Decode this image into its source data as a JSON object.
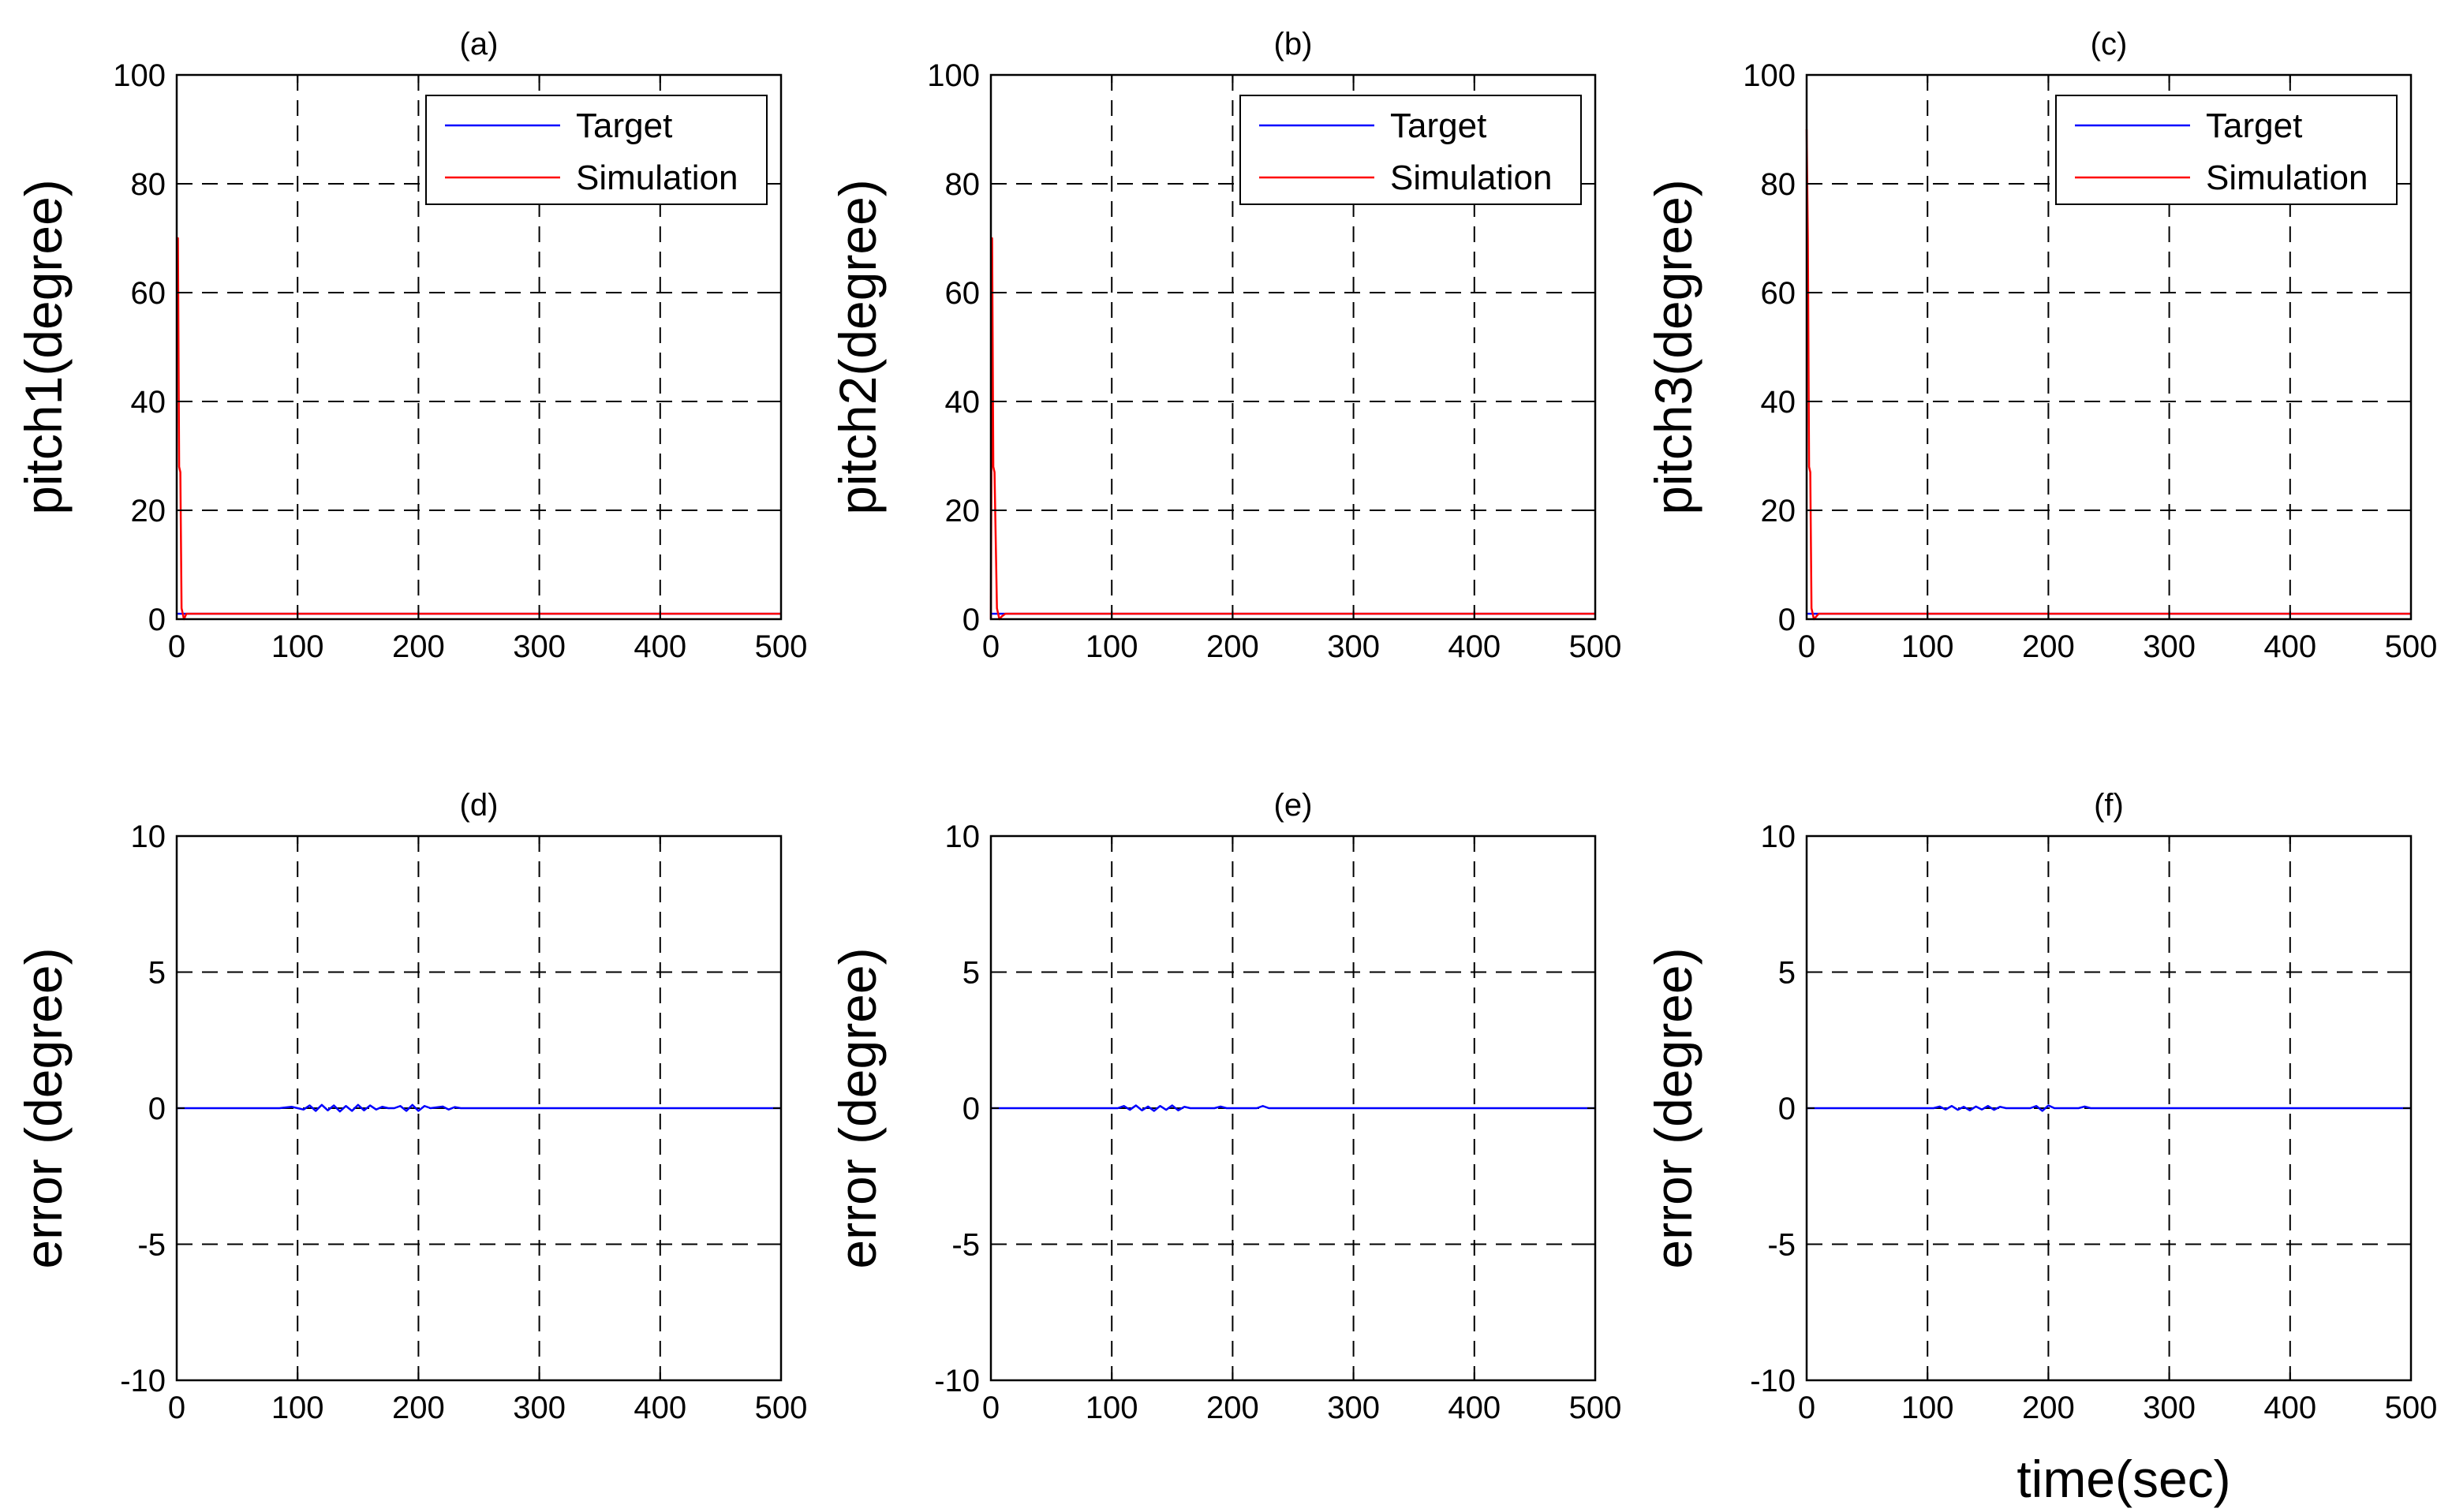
{
  "figure": {
    "shared_xlabel": "time(sec)",
    "colors": {
      "target": "#0000ff",
      "simulation": "#ff0000",
      "grid": "#000000",
      "axes": "#000000"
    }
  },
  "chart_data": [
    {
      "panel": "a",
      "type": "line",
      "title": "(a)",
      "xlabel": "",
      "ylabel": "pitch1(degree)",
      "xlim": [
        0,
        500
      ],
      "ylim": [
        0,
        100
      ],
      "xticks": [
        0,
        100,
        200,
        300,
        400,
        500
      ],
      "yticks": [
        0,
        20,
        40,
        60,
        80,
        100
      ],
      "grid": true,
      "legend_position": "top-right",
      "series": [
        {
          "name": "Target",
          "color": "#0000ff",
          "x": [
            0,
            500
          ],
          "y": [
            1,
            1
          ]
        },
        {
          "name": "Simulation",
          "color": "#ff0000",
          "x": [
            0,
            1,
            2,
            3,
            4,
            6,
            8,
            10,
            500
          ],
          "y": [
            70,
            70,
            28,
            27,
            2,
            0,
            1,
            1,
            1
          ]
        }
      ]
    },
    {
      "panel": "b",
      "type": "line",
      "title": "(b)",
      "xlabel": "",
      "ylabel": "pitch2(degree)",
      "xlim": [
        0,
        500
      ],
      "ylim": [
        0,
        100
      ],
      "xticks": [
        0,
        100,
        200,
        300,
        400,
        500
      ],
      "yticks": [
        0,
        20,
        40,
        60,
        80,
        100
      ],
      "grid": true,
      "legend_position": "top-right",
      "series": [
        {
          "name": "Target",
          "color": "#0000ff",
          "x": [
            0,
            500
          ],
          "y": [
            1,
            1
          ]
        },
        {
          "name": "Simulation",
          "color": "#ff0000",
          "x": [
            0,
            1,
            2,
            3,
            5,
            7,
            9,
            12,
            500
          ],
          "y": [
            0,
            70,
            28,
            27,
            2,
            0,
            0.5,
            1,
            1
          ]
        }
      ]
    },
    {
      "panel": "c",
      "type": "line",
      "title": "(c)",
      "xlabel": "",
      "ylabel": "pitch3(degree)",
      "xlim": [
        0,
        500
      ],
      "ylim": [
        0,
        100
      ],
      "xticks": [
        0,
        100,
        200,
        300,
        400,
        500
      ],
      "yticks": [
        0,
        20,
        40,
        60,
        80,
        100
      ],
      "grid": true,
      "legend_position": "top-right",
      "series": [
        {
          "name": "Target",
          "color": "#0000ff",
          "x": [
            0,
            500
          ],
          "y": [
            1,
            1
          ]
        },
        {
          "name": "Simulation",
          "color": "#ff0000",
          "x": [
            0,
            1,
            2,
            3,
            4,
            6,
            8,
            10,
            500
          ],
          "y": [
            90,
            70,
            28,
            27,
            2,
            0,
            0.5,
            1,
            1
          ]
        }
      ]
    },
    {
      "panel": "d",
      "type": "line",
      "title": "(d)",
      "xlabel": "",
      "ylabel": "error (degree)",
      "xlim": [
        0,
        500
      ],
      "ylim": [
        -10,
        10
      ],
      "xticks": [
        0,
        100,
        200,
        300,
        400,
        500
      ],
      "yticks": [
        -10,
        -5,
        0,
        5,
        10
      ],
      "grid": true,
      "series": [
        {
          "color": "#0000ff",
          "x": [
            0,
            85,
            95,
            105,
            110,
            115,
            120,
            125,
            130,
            135,
            140,
            145,
            150,
            155,
            160,
            165,
            170,
            175,
            180,
            185,
            190,
            195,
            200,
            205,
            210,
            220,
            225,
            230,
            235,
            500
          ],
          "y": [
            0,
            0,
            0.05,
            -0.05,
            0.1,
            -0.1,
            0.12,
            -0.08,
            0.1,
            -0.12,
            0.08,
            -0.1,
            0.12,
            -0.08,
            0.1,
            -0.05,
            0.05,
            0,
            0,
            0.08,
            -0.1,
            0.12,
            -0.1,
            0.08,
            0,
            0.06,
            -0.05,
            0.04,
            0,
            0
          ]
        }
      ]
    },
    {
      "panel": "e",
      "type": "line",
      "title": "(e)",
      "xlabel": "",
      "ylabel": "error (degree)",
      "xlim": [
        0,
        500
      ],
      "ylim": [
        -10,
        10
      ],
      "xticks": [
        0,
        100,
        200,
        300,
        400,
        500
      ],
      "yticks": [
        -10,
        -5,
        0,
        5,
        10
      ],
      "grid": true,
      "series": [
        {
          "color": "#0000ff",
          "x": [
            0,
            105,
            110,
            115,
            120,
            125,
            130,
            135,
            140,
            145,
            150,
            155,
            160,
            165,
            185,
            190,
            195,
            220,
            225,
            230,
            500
          ],
          "y": [
            0,
            0,
            0.08,
            -0.06,
            0.1,
            -0.08,
            0.06,
            -0.1,
            0.08,
            -0.06,
            0.1,
            -0.08,
            0.05,
            0,
            0,
            0.06,
            0,
            0,
            0.08,
            0,
            0
          ]
        }
      ]
    },
    {
      "panel": "f",
      "type": "line",
      "title": "(f)",
      "xlabel": "time(sec)",
      "ylabel": "error (degree)",
      "xlim": [
        0,
        500
      ],
      "ylim": [
        -10,
        10
      ],
      "xticks": [
        0,
        100,
        200,
        300,
        400,
        500
      ],
      "yticks": [
        -10,
        -5,
        0,
        5,
        10
      ],
      "grid": true,
      "series": [
        {
          "color": "#0000ff",
          "x": [
            0,
            105,
            110,
            115,
            120,
            125,
            130,
            135,
            140,
            145,
            150,
            155,
            160,
            165,
            185,
            190,
            195,
            200,
            205,
            225,
            230,
            235,
            500
          ],
          "y": [
            0,
            0,
            0.06,
            -0.05,
            0.08,
            -0.06,
            0.05,
            -0.08,
            0.06,
            -0.05,
            0.08,
            -0.06,
            0.05,
            0,
            0,
            0.08,
            -0.1,
            0.1,
            0,
            0,
            0.06,
            0,
            0
          ]
        }
      ]
    }
  ]
}
